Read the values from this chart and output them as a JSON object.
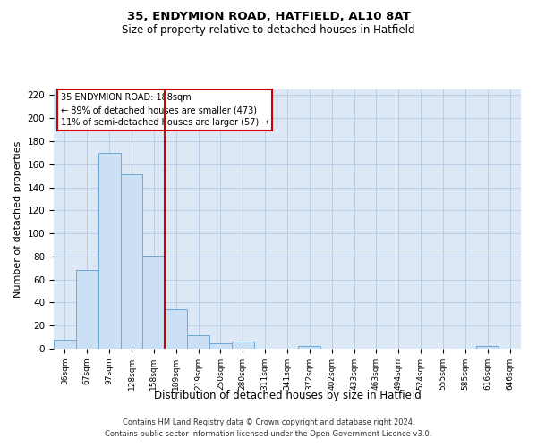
{
  "title1": "35, ENDYMION ROAD, HATFIELD, AL10 8AT",
  "title2": "Size of property relative to detached houses in Hatfield",
  "xlabel": "Distribution of detached houses by size in Hatfield",
  "ylabel": "Number of detached properties",
  "bin_labels": [
    "36sqm",
    "67sqm",
    "97sqm",
    "128sqm",
    "158sqm",
    "189sqm",
    "219sqm",
    "250sqm",
    "280sqm",
    "311sqm",
    "341sqm",
    "372sqm",
    "402sqm",
    "433sqm",
    "463sqm",
    "494sqm",
    "524sqm",
    "555sqm",
    "585sqm",
    "616sqm",
    "646sqm"
  ],
  "bar_heights": [
    8,
    68,
    170,
    151,
    81,
    34,
    12,
    5,
    6,
    0,
    0,
    2,
    0,
    0,
    0,
    0,
    0,
    0,
    0,
    2,
    0
  ],
  "bar_color": "#cce0f5",
  "bar_edge_color": "#6aaad4",
  "vline_color": "#cc0000",
  "ylim": [
    0,
    225
  ],
  "yticks": [
    0,
    20,
    40,
    60,
    80,
    100,
    120,
    140,
    160,
    180,
    200,
    220
  ],
  "annotation_line1": "35 ENDYMION ROAD: 188sqm",
  "annotation_line2": "← 89% of detached houses are smaller (473)",
  "annotation_line3": "11% of semi-detached houses are larger (57) →",
  "footnote1": "Contains HM Land Registry data © Crown copyright and database right 2024.",
  "footnote2": "Contains public sector information licensed under the Open Government Licence v3.0.",
  "grid_color": "#b8cfe8",
  "background_color": "#dce8f5"
}
